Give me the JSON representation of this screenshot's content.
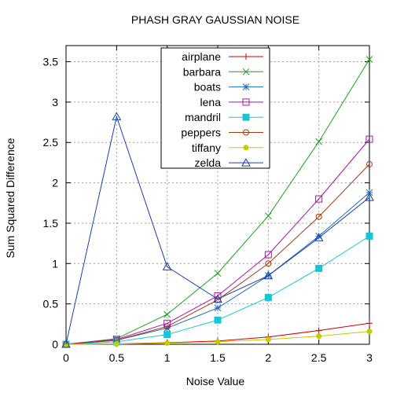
{
  "chart_data": {
    "type": "line",
    "title": "PHASH GRAY GAUSSIAN NOISE",
    "xlabel": "Noise Value",
    "ylabel": "Sum Squared Difference",
    "xlim": [
      0,
      3
    ],
    "ylim": [
      0,
      3.7
    ],
    "xticks": [
      0,
      0.5,
      1,
      1.5,
      2,
      2.5,
      3
    ],
    "yticks": [
      0,
      0.5,
      1,
      1.5,
      2,
      2.5,
      3,
      3.5
    ],
    "xtick_labels": [
      "0",
      "0.5",
      "1",
      "1.5",
      "2",
      "2.5",
      "3"
    ],
    "ytick_labels": [
      "0",
      "0.5",
      "1",
      "1.5",
      "2",
      "2.5",
      "3",
      "3.5"
    ],
    "grid": true,
    "legend_position": "top-center",
    "x": [
      0,
      0.5,
      1,
      1.5,
      2,
      2.5,
      3
    ],
    "series": [
      {
        "name": "airplane",
        "color": "#cc0000",
        "marker": "plus",
        "values": [
          0,
          0.005,
          0.02,
          0.04,
          0.09,
          0.17,
          0.26
        ]
      },
      {
        "name": "barbara",
        "color": "#1aa31a",
        "marker": "cross",
        "values": [
          0,
          0.07,
          0.37,
          0.88,
          1.59,
          2.51,
          3.53
        ]
      },
      {
        "name": "boats",
        "color": "#1a6ebf",
        "marker": "star",
        "values": [
          0,
          0.05,
          0.2,
          0.45,
          0.85,
          1.34,
          1.88
        ]
      },
      {
        "name": "lena",
        "color": "#b010b0",
        "marker": "square",
        "values": [
          0,
          0.06,
          0.26,
          0.6,
          1.11,
          1.8,
          2.54
        ]
      },
      {
        "name": "mandril",
        "color": "#10c8d8",
        "marker": "filled-square",
        "values": [
          0,
          0.03,
          0.12,
          0.3,
          0.58,
          0.94,
          1.34
        ]
      },
      {
        "name": "peppers",
        "color": "#a03a10",
        "marker": "circle",
        "values": [
          0,
          0.05,
          0.22,
          0.55,
          1.0,
          1.58,
          2.23
        ]
      },
      {
        "name": "tiffany",
        "color": "#c8c800",
        "marker": "filled-circle",
        "values": [
          0,
          0.004,
          0.015,
          0.03,
          0.06,
          0.1,
          0.16
        ]
      },
      {
        "name": "zelda",
        "color": "#1a3fa8",
        "marker": "triangle",
        "values": [
          0,
          2.82,
          0.96,
          0.56,
          0.85,
          1.32,
          1.82
        ]
      }
    ]
  }
}
